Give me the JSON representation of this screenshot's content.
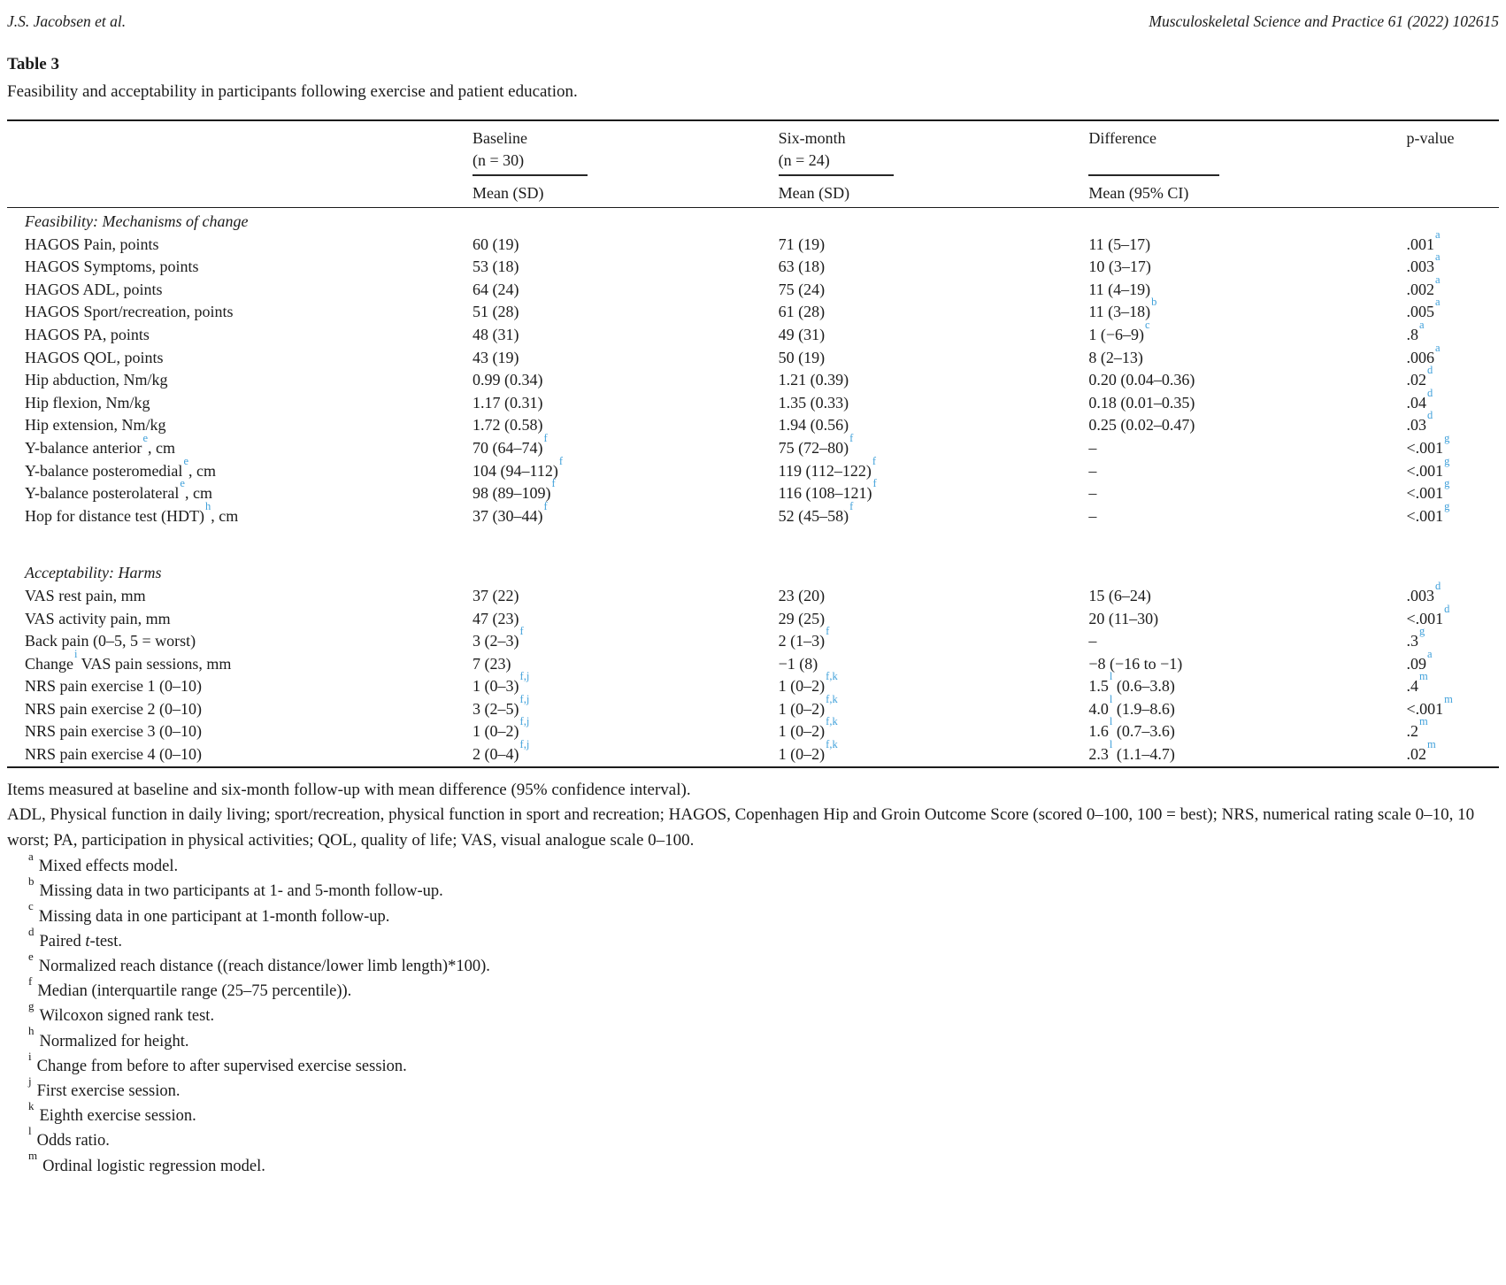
{
  "page": {
    "running_author": "J.S. Jacobsen et al.",
    "running_journal": "Musculoskeletal Science and Practice 61 (2022) 102615"
  },
  "table": {
    "label": "Table 3",
    "caption": "Feasibility and acceptability in participants following exercise and patient education.",
    "columns": [
      {
        "line1": "Baseline",
        "line2": "(n = 30)",
        "sub": "Mean (SD)"
      },
      {
        "line1": "Six-month",
        "line2": "(n = 24)",
        "sub": "Mean (SD)"
      },
      {
        "line1": "Difference",
        "line2": "",
        "sub": "Mean (95% CI)"
      },
      {
        "line1": "p-value"
      }
    ],
    "sections": [
      {
        "heading": "Feasibility: Mechanisms of change",
        "rows": [
          {
            "label": "HAGOS Pain, points",
            "baseline": "60 (19)",
            "six": "71 (19)",
            "diff": "11 (5–17)",
            "p": ".001^{a}"
          },
          {
            "label": "HAGOS Symptoms, points",
            "baseline": "53 (18)",
            "six": "63 (18)",
            "diff": "10 (3–17)",
            "p": ".003^{a}"
          },
          {
            "label": "HAGOS ADL, points",
            "baseline": "64 (24)",
            "six": "75 (24)",
            "diff": "11 (4–19)",
            "p": ".002^{a}"
          },
          {
            "label": "HAGOS Sport/recreation, points",
            "baseline": "51 (28)",
            "six": "61 (28)",
            "diff": "11 (3–18)^{b}",
            "p": ".005^{a}"
          },
          {
            "label": "HAGOS PA, points",
            "baseline": "48 (31)",
            "six": "49 (31)",
            "diff": "1 (−6–9)^{c}",
            "p": ".8^{a}"
          },
          {
            "label": "HAGOS QOL, points",
            "baseline": "43 (19)",
            "six": "50 (19)",
            "diff": "8 (2–13)",
            "p": ".006^{a}"
          },
          {
            "label": "Hip abduction, Nm/kg",
            "baseline": "0.99 (0.34)",
            "six": "1.21 (0.39)",
            "diff": "0.20 (0.04–0.36)",
            "p": ".02^{d}"
          },
          {
            "label": "Hip flexion, Nm/kg",
            "baseline": "1.17 (0.31)",
            "six": "1.35 (0.33)",
            "diff": "0.18 (0.01–0.35)",
            "p": ".04^{d}"
          },
          {
            "label": "Hip extension, Nm/kg",
            "baseline": "1.72 (0.58)",
            "six": "1.94 (0.56)",
            "diff": "0.25 (0.02–0.47)",
            "p": ".03^{d}"
          },
          {
            "label": "Y-balance anterior^{e}, cm",
            "baseline": "70 (64–74)^{f}",
            "six": "75 (72–80)^{f}",
            "diff": "–",
            "p": "<.001^{g}"
          },
          {
            "label": "Y-balance posteromedial^{e}, cm",
            "baseline": "104 (94–112)^{f}",
            "six": "119 (112–122)^{f}",
            "diff": "–",
            "p": "<.001^{g}"
          },
          {
            "label": "Y-balance posterolateral^{e}, cm",
            "baseline": "98 (89–109)^{f}",
            "six": "116 (108–121)^{f}",
            "diff": "–",
            "p": "<.001^{g}"
          },
          {
            "label": "Hop for distance test (HDT)^{h}, cm",
            "baseline": "37 (30–44)^{f}",
            "six": "52 (45–58)^{f}",
            "diff": "–",
            "p": "<.001^{g}"
          }
        ]
      },
      {
        "heading": "Acceptability: Harms",
        "rows": [
          {
            "label": "VAS rest pain, mm",
            "baseline": "37 (22)",
            "six": "23 (20)",
            "diff": "15 (6–24)",
            "p": ".003^{d}"
          },
          {
            "label": "VAS activity pain, mm",
            "baseline": "47 (23)",
            "six": "29 (25)",
            "diff": "20 (11–30)",
            "p": "<.001^{d}"
          },
          {
            "label": "Back pain (0–5, 5 = worst)",
            "baseline": "3 (2–3)^{f}",
            "six": "2 (1–3)^{f}",
            "diff": "–",
            "p": ".3^{g}"
          },
          {
            "label": "Change^{i} VAS pain sessions, mm",
            "baseline": "7 (23)",
            "six": "−1 (8)",
            "diff": "−8 (−16 to −1)",
            "p": ".09^{a}"
          },
          {
            "label": "NRS pain exercise 1 (0–10)",
            "baseline": "1 (0–3)^{f,j}",
            "six": "1 (0–2)^{f,k}",
            "diff": "1.5^{l} (0.6–3.8)",
            "p": ".4^{m}"
          },
          {
            "label": "NRS pain exercise 2 (0–10)",
            "baseline": "3 (2–5)^{f,j}",
            "six": "1 (0–2)^{f,k}",
            "diff": "4.0^{l} (1.9–8.6)",
            "p": "<.001^{m}"
          },
          {
            "label": "NRS pain exercise 3 (0–10)",
            "baseline": "1 (0–2)^{f,j}",
            "six": "1 (0–2)^{f,k}",
            "diff": "1.6^{l} (0.7–3.6)",
            "p": ".2^{m}"
          },
          {
            "label": "NRS pain exercise 4 (0–10)",
            "baseline": "2 (0–4)^{f,j}",
            "six": "1 (0–2)^{f,k}",
            "diff": "2.3^{l} (1.1–4.7)",
            "p": ".02^{m}"
          }
        ]
      }
    ]
  },
  "notes": {
    "general": [
      "Items measured at baseline and six-month follow-up with mean difference (95% confidence interval).",
      "ADL, Physical function in daily living; sport/recreation, physical function in sport and recreation; HAGOS, Copenhagen Hip and Groin Outcome Score (scored 0–100, 100 = best); NRS, numerical rating scale 0–10, 10 worst; PA, participation in physical activities; QOL, quality of life; VAS, visual analogue scale 0–100."
    ],
    "footnotes": [
      {
        "marker": "a",
        "text": "Mixed effects model."
      },
      {
        "marker": "b",
        "text": "Missing data in two participants at 1- and 5-month follow-up."
      },
      {
        "marker": "c",
        "text": "Missing data in one participant at 1-month follow-up."
      },
      {
        "marker": "d",
        "text": "Paired *t*-test."
      },
      {
        "marker": "e",
        "text": "Normalized reach distance ((reach distance/lower limb length)*100)."
      },
      {
        "marker": "f",
        "text": "Median (interquartile range (25–75 percentile))."
      },
      {
        "marker": "g",
        "text": "Wilcoxon signed rank test."
      },
      {
        "marker": "h",
        "text": "Normalized for height."
      },
      {
        "marker": "i",
        "text": "Change from before to after supervised exercise session."
      },
      {
        "marker": "j",
        "text": "First exercise session."
      },
      {
        "marker": "k",
        "text": "Eighth exercise session."
      },
      {
        "marker": "l",
        "text": "Odds ratio."
      },
      {
        "marker": "m",
        "text": "Ordinal logistic regression model."
      }
    ]
  },
  "colors": {
    "superscript_blue": "#3fa0da",
    "text": "#1b1b1b",
    "rule": "#1c1c1c"
  }
}
